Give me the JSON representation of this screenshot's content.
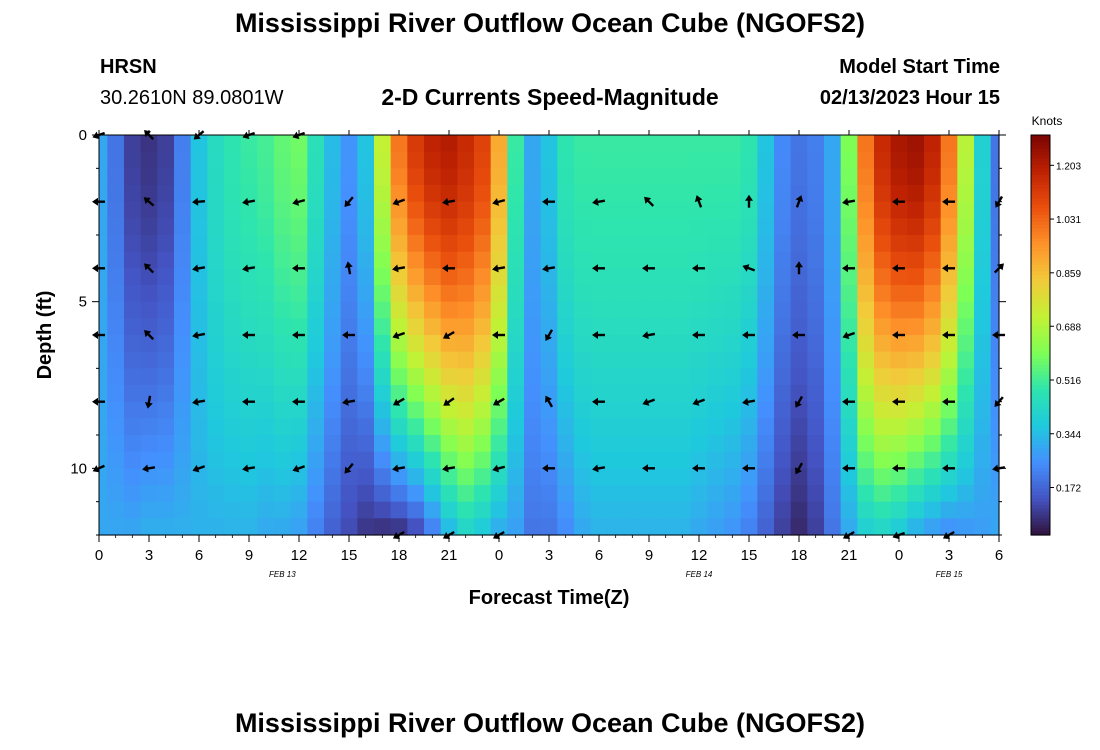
{
  "titles": {
    "main": "Mississippi River Outflow Ocean Cube (NGOFS2)",
    "second": "Mississippi River Outflow Ocean Cube (NGOFS2)"
  },
  "station": {
    "name": "HRSN",
    "coords": "30.2610N  89.0801W"
  },
  "subtitle": "2-D Currents Speed-Magnitude",
  "model": {
    "label": "Model Start Time",
    "value": "02/13/2023 Hour 15"
  },
  "chart_data": {
    "type": "heatmap",
    "title": "2-D Currents Speed-Magnitude",
    "xlabel": "Forecast Time(Z)",
    "ylabel": "Depth (ft)",
    "x_tick_labels": [
      "0",
      "3",
      "6",
      "9",
      "12",
      "15",
      "18",
      "21",
      "0",
      "3",
      "6",
      "9",
      "12",
      "15",
      "18",
      "21",
      "0",
      "3",
      "6"
    ],
    "x_hours": [
      0,
      3,
      6,
      9,
      12,
      15,
      18,
      21,
      24,
      27,
      30,
      33,
      36,
      39,
      42,
      45,
      48,
      51,
      54
    ],
    "date_labels": [
      {
        "text": "FEB 13",
        "hour": 11
      },
      {
        "text": "FEB 14",
        "hour": 36
      },
      {
        "text": "FEB 15",
        "hour": 51
      }
    ],
    "y_ticks": [
      0,
      5,
      10
    ],
    "ylim": [
      0,
      12
    ],
    "xlim": [
      0,
      54
    ],
    "colorbar": {
      "label": "Knots",
      "ticks": [
        0.172,
        0.344,
        0.516,
        0.688,
        0.859,
        1.031,
        1.203
      ],
      "ticks_text": [
        "0.172",
        "0.344",
        "0.516",
        "0.688",
        "0.859",
        "1.031",
        "1.203"
      ],
      "range": [
        0.02,
        1.3
      ]
    },
    "colors": [
      "#30123b",
      "#4454c4",
      "#4490fe",
      "#1fc9dd",
      "#2ee5ae",
      "#7eff55",
      "#c3f134",
      "#f2ca3a",
      "#fe922a",
      "#ea4f0d",
      "#be2102",
      "#7a0403"
    ],
    "speed_profile": {
      "hours": [
        0,
        1,
        2,
        3,
        4,
        5,
        6,
        7,
        8,
        9,
        10,
        11,
        12,
        13,
        14,
        15,
        16,
        17,
        18,
        19,
        20,
        21,
        22,
        23,
        24,
        25,
        26,
        27,
        28,
        29,
        30,
        31,
        32,
        33,
        34,
        35,
        36,
        37,
        38,
        39,
        40,
        41,
        42,
        43,
        44,
        45,
        46,
        47,
        48,
        49,
        50,
        51,
        52,
        53,
        54
      ],
      "surface": [
        0.3,
        0.2,
        0.1,
        0.08,
        0.1,
        0.22,
        0.36,
        0.44,
        0.48,
        0.5,
        0.52,
        0.56,
        0.58,
        0.46,
        0.34,
        0.26,
        0.36,
        0.72,
        1.0,
        1.12,
        1.18,
        1.2,
        1.16,
        1.1,
        0.9,
        0.5,
        0.3,
        0.36,
        0.48,
        0.5,
        0.5,
        0.5,
        0.5,
        0.5,
        0.5,
        0.5,
        0.5,
        0.5,
        0.5,
        0.48,
        0.36,
        0.24,
        0.2,
        0.22,
        0.3,
        0.6,
        1.0,
        1.16,
        1.22,
        1.24,
        1.18,
        1.0,
        0.7,
        0.4,
        0.2
      ],
      "bottom": [
        0.3,
        0.3,
        0.3,
        0.32,
        0.32,
        0.32,
        0.32,
        0.32,
        0.32,
        0.32,
        0.3,
        0.3,
        0.28,
        0.22,
        0.16,
        0.12,
        0.08,
        0.06,
        0.06,
        0.1,
        0.2,
        0.32,
        0.4,
        0.36,
        0.3,
        0.28,
        0.2,
        0.2,
        0.24,
        0.3,
        0.32,
        0.32,
        0.32,
        0.32,
        0.32,
        0.32,
        0.3,
        0.28,
        0.26,
        0.22,
        0.16,
        0.1,
        0.06,
        0.1,
        0.2,
        0.3,
        0.38,
        0.4,
        0.36,
        0.3,
        0.26,
        0.24,
        0.26,
        0.28,
        0.3
      ]
    },
    "arrow_rows_ft": [
      0,
      2,
      4,
      6,
      8,
      10,
      12
    ],
    "arrow_hours": [
      0,
      3,
      6,
      9,
      12,
      15,
      18,
      21,
      24,
      27,
      30,
      33,
      36,
      39,
      42,
      45,
      48,
      51,
      54
    ],
    "arrow_directions_deg": [
      [
        200,
        135,
        220,
        200,
        200,
        null,
        null,
        null,
        null,
        null,
        null,
        null,
        null,
        null,
        null,
        null,
        null,
        null,
        null
      ],
      [
        180,
        140,
        185,
        190,
        195,
        230,
        200,
        190,
        195,
        180,
        190,
        135,
        110,
        90,
        70,
        190,
        180,
        180,
        240
      ],
      [
        180,
        135,
        190,
        190,
        180,
        100,
        190,
        180,
        190,
        190,
        180,
        180,
        180,
        160,
        90,
        180,
        180,
        180,
        45
      ],
      [
        180,
        135,
        190,
        180,
        180,
        180,
        200,
        210,
        180,
        240,
        180,
        190,
        180,
        180,
        180,
        200,
        180,
        180,
        180
      ],
      [
        180,
        260,
        190,
        180,
        180,
        190,
        210,
        215,
        210,
        120,
        180,
        200,
        200,
        190,
        240,
        180,
        180,
        180,
        230
      ],
      [
        205,
        190,
        200,
        190,
        200,
        230,
        190,
        190,
        195,
        180,
        190,
        180,
        180,
        180,
        240,
        180,
        180,
        180,
        190
      ],
      [
        null,
        null,
        null,
        null,
        null,
        null,
        210,
        210,
        210,
        null,
        null,
        null,
        null,
        null,
        null,
        210,
        200,
        210,
        null
      ]
    ]
  }
}
